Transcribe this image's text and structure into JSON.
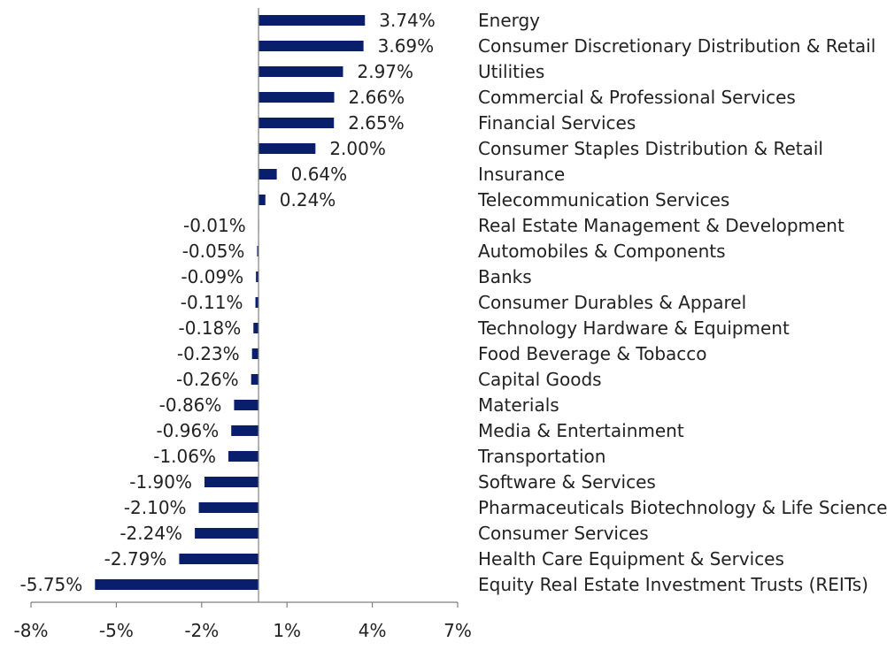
{
  "chart_data": {
    "type": "bar",
    "orientation": "horizontal",
    "categories": [
      "Energy",
      "Consumer Discretionary Distribution & Retail",
      "Utilities",
      "Commercial & Professional Services",
      "Financial Services",
      "Consumer Staples Distribution & Retail",
      "Insurance",
      "Telecommunication Services",
      "Real Estate Management & Development",
      "Automobiles & Components",
      "Banks",
      "Consumer Durables & Apparel",
      "Technology Hardware & Equipment",
      "Food Beverage & Tobacco",
      "Capital Goods",
      "Materials",
      "Media & Entertainment",
      "Transportation",
      "Software & Services",
      "Pharmaceuticals Biotechnology & Life Sciences",
      "Consumer Services",
      "Health Care Equipment & Services",
      "Equity Real Estate Investment Trusts (REITs)"
    ],
    "values": [
      3.74,
      3.69,
      2.97,
      2.66,
      2.65,
      2.0,
      0.64,
      0.24,
      -0.01,
      -0.05,
      -0.09,
      -0.11,
      -0.18,
      -0.23,
      -0.26,
      -0.86,
      -0.96,
      -1.06,
      -1.9,
      -2.1,
      -2.24,
      -2.79,
      -5.75
    ],
    "value_labels": [
      "3.74%",
      "3.69%",
      "2.97%",
      "2.66%",
      "2.65%",
      "2.00%",
      "0.64%",
      "0.24%",
      "-0.01%",
      "-0.05%",
      "-0.09%",
      "-0.11%",
      "-0.18%",
      "-0.23%",
      "-0.26%",
      "-0.86%",
      "-0.96%",
      "-1.06%",
      "-1.90%",
      "-2.10%",
      "-2.24%",
      "-2.79%",
      "-5.75%"
    ],
    "xlim": [
      -8,
      7
    ],
    "xticks": [
      -8,
      -5,
      -2,
      1,
      4,
      7
    ],
    "xtick_labels": [
      "-8%",
      "-5%",
      "-2%",
      "1%",
      "4%",
      "7%"
    ],
    "title": "",
    "xlabel": "",
    "ylabel": "",
    "grid": false,
    "legend": "none",
    "bar_color": "#0a1f6b"
  }
}
